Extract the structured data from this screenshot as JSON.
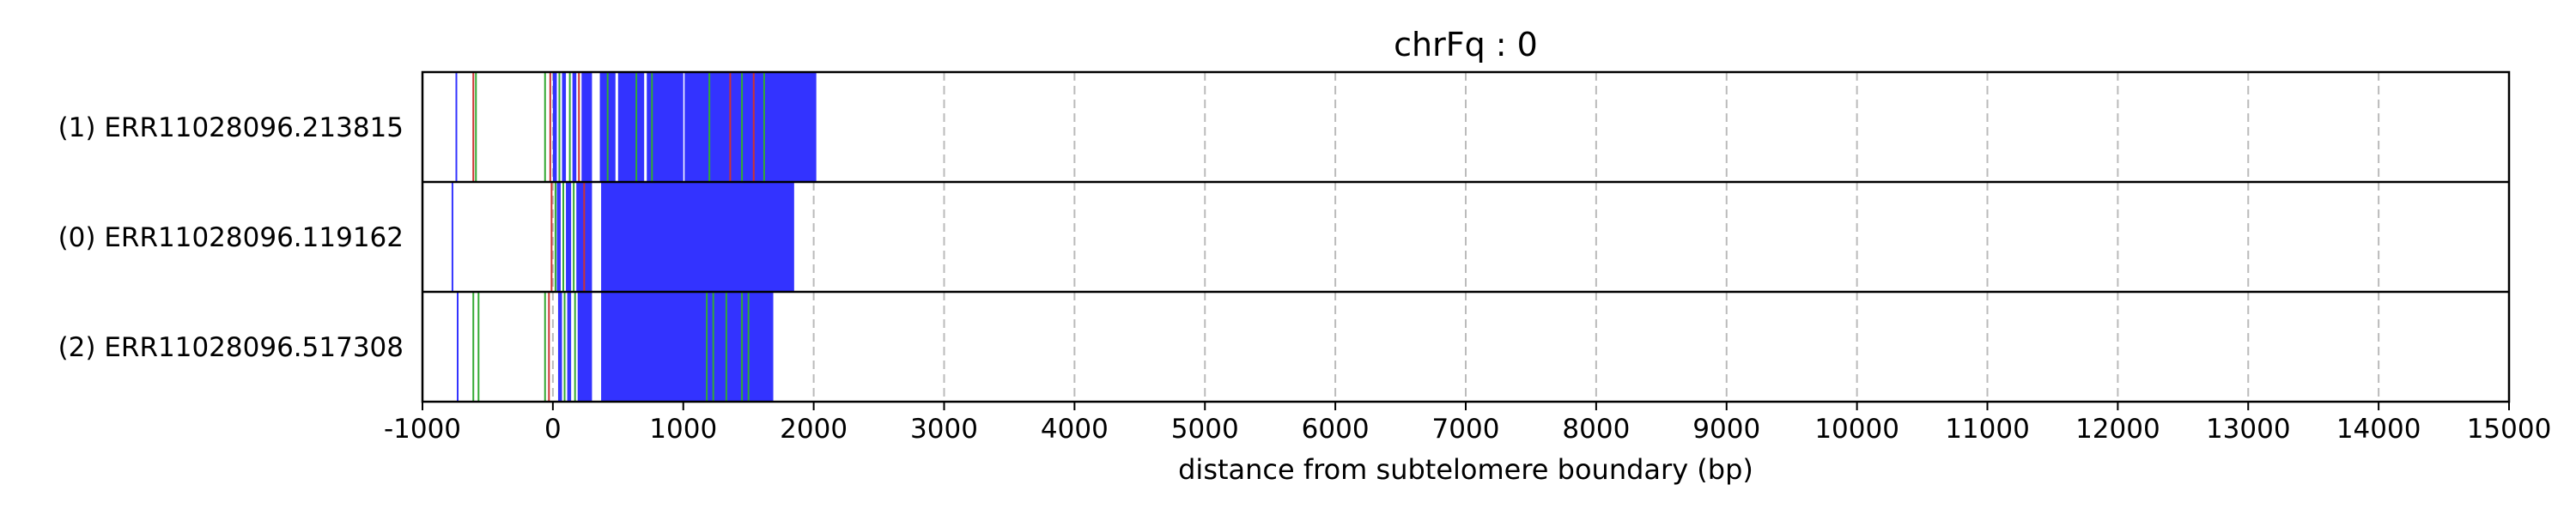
{
  "chart_data": {
    "type": "bar",
    "title": "chrFq : 0",
    "xlabel": "distance from subtelomere boundary (bp)",
    "ylabel": "",
    "xlim": [
      -1000,
      15000
    ],
    "xticks": [
      -1000,
      0,
      1000,
      2000,
      3000,
      4000,
      5000,
      6000,
      7000,
      8000,
      9000,
      10000,
      11000,
      12000,
      13000,
      14000,
      15000
    ],
    "grid": "x-dashed",
    "colors": {
      "blue": "#3333ff",
      "green": "#33aa33",
      "red": "#cc3333",
      "grid": "#bbbbbb"
    },
    "reads": [
      {
        "label": "(1) ERR11028096.213815",
        "blocks": [
          [
            0,
            30
          ],
          [
            70,
            100
          ],
          [
            150,
            180
          ],
          [
            220,
            300
          ],
          [
            360,
            2020
          ]
        ],
        "gaps": [
          [
            480,
            500
          ],
          [
            700,
            720
          ],
          [
            1000,
            1010
          ]
        ],
        "lines": [
          {
            "x": -740,
            "color": "blue"
          },
          {
            "x": -610,
            "color": "red"
          },
          {
            "x": -590,
            "color": "green"
          },
          {
            "x": -60,
            "color": "green"
          },
          {
            "x": -20,
            "color": "red"
          },
          {
            "x": 50,
            "color": "green"
          },
          {
            "x": 130,
            "color": "green"
          },
          {
            "x": 200,
            "color": "red"
          },
          {
            "x": 420,
            "color": "green"
          },
          {
            "x": 640,
            "color": "green"
          },
          {
            "x": 760,
            "color": "green"
          },
          {
            "x": 1200,
            "color": "green"
          },
          {
            "x": 1360,
            "color": "red"
          },
          {
            "x": 1450,
            "color": "green"
          },
          {
            "x": 1540,
            "color": "red"
          },
          {
            "x": 1620,
            "color": "green"
          }
        ]
      },
      {
        "label": "(0) ERR11028096.119162",
        "blocks": [
          [
            30,
            60
          ],
          [
            100,
            140
          ],
          [
            180,
            300
          ],
          [
            370,
            1850
          ]
        ],
        "gaps": [],
        "lines": [
          {
            "x": -770,
            "color": "blue"
          },
          {
            "x": -10,
            "color": "red"
          },
          {
            "x": 20,
            "color": "green"
          },
          {
            "x": 80,
            "color": "green"
          },
          {
            "x": 160,
            "color": "green"
          },
          {
            "x": 240,
            "color": "red"
          }
        ]
      },
      {
        "label": "(2) ERR11028096.517308",
        "blocks": [
          [
            40,
            70
          ],
          [
            110,
            140
          ],
          [
            190,
            300
          ],
          [
            370,
            1690
          ]
        ],
        "gaps": [],
        "lines": [
          {
            "x": -730,
            "color": "blue"
          },
          {
            "x": -610,
            "color": "green"
          },
          {
            "x": -570,
            "color": "green"
          },
          {
            "x": -60,
            "color": "green"
          },
          {
            "x": -30,
            "color": "red"
          },
          {
            "x": 90,
            "color": "green"
          },
          {
            "x": 170,
            "color": "green"
          },
          {
            "x": 1180,
            "color": "green"
          },
          {
            "x": 1230,
            "color": "green"
          },
          {
            "x": 1330,
            "color": "green"
          },
          {
            "x": 1450,
            "color": "green"
          },
          {
            "x": 1500,
            "color": "green"
          }
        ]
      }
    ]
  }
}
